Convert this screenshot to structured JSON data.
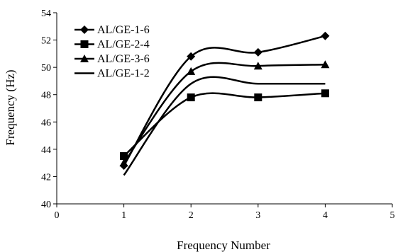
{
  "chart_data": {
    "type": "line",
    "title": "",
    "xlabel": "Frequency Number",
    "ylabel": "Frequency (Hz)",
    "xlim": [
      0,
      5
    ],
    "ylim": [
      40,
      54
    ],
    "x_ticks": [
      0,
      1,
      2,
      3,
      4,
      5
    ],
    "y_ticks": [
      40,
      42,
      44,
      46,
      48,
      50,
      52,
      54
    ],
    "grid": false,
    "legend_position": "top-left",
    "series": [
      {
        "name": "AL/GE-1-6",
        "marker": "diamond",
        "smooth": true,
        "x": [
          1,
          2,
          3,
          4
        ],
        "y": [
          42.8,
          50.8,
          51.1,
          52.3
        ]
      },
      {
        "name": "AL/GE-2-4",
        "marker": "square",
        "smooth": true,
        "x": [
          1,
          2,
          3,
          4
        ],
        "y": [
          43.5,
          47.8,
          47.8,
          48.1
        ]
      },
      {
        "name": "AL/GE-3-6",
        "marker": "triangle",
        "smooth": true,
        "x": [
          1,
          2,
          3,
          4
        ],
        "y": [
          43.0,
          49.7,
          50.1,
          50.2
        ]
      },
      {
        "name": "AL/GE-1-2",
        "marker": "none",
        "smooth": true,
        "x": [
          1,
          2,
          3,
          4
        ],
        "y": [
          42.1,
          48.8,
          48.8,
          48.8
        ]
      }
    ]
  }
}
